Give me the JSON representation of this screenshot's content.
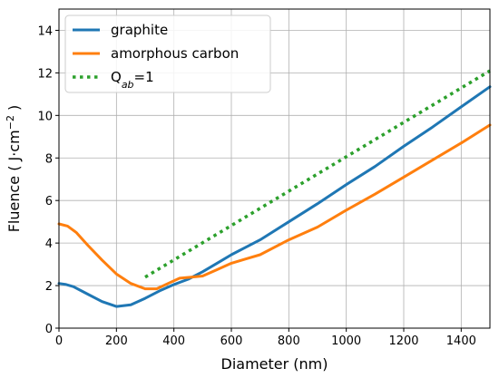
{
  "chart_data": {
    "type": "line",
    "xlabel": "Diameter (nm)",
    "ylabel_parts": [
      "Fluence ( J·cm",
      "−2",
      " )"
    ],
    "xlim": [
      0,
      1500
    ],
    "ylim": [
      0,
      15
    ],
    "xticks": [
      0,
      200,
      400,
      600,
      800,
      1000,
      1200,
      1400
    ],
    "yticks": [
      0,
      2,
      4,
      6,
      8,
      10,
      12,
      14
    ],
    "grid": true,
    "legend_position": "upper-left",
    "series": [
      {
        "name": "graphite",
        "color": "#1f77b4",
        "style": "solid",
        "x": [
          0,
          25,
          50,
          100,
          150,
          200,
          250,
          300,
          350,
          400,
          450,
          500,
          550,
          600,
          650,
          700,
          800,
          900,
          1000,
          1100,
          1200,
          1300,
          1400,
          1500
        ],
        "y": [
          2.1,
          2.05,
          1.95,
          1.6,
          1.25,
          1.02,
          1.1,
          1.4,
          1.75,
          2.05,
          2.3,
          2.65,
          3.05,
          3.45,
          3.8,
          4.15,
          5.0,
          5.85,
          6.75,
          7.6,
          8.55,
          9.45,
          10.4,
          11.35
        ]
      },
      {
        "name": "amorphous carbon",
        "color": "#ff7f0e",
        "style": "solid",
        "x": [
          0,
          30,
          60,
          100,
          150,
          200,
          250,
          300,
          340,
          380,
          420,
          460,
          500,
          550,
          600,
          650,
          700,
          800,
          900,
          1000,
          1100,
          1200,
          1300,
          1400,
          1500
        ],
        "y": [
          4.9,
          4.8,
          4.5,
          3.9,
          3.2,
          2.55,
          2.1,
          1.85,
          1.85,
          2.1,
          2.35,
          2.4,
          2.45,
          2.75,
          3.05,
          3.25,
          3.45,
          4.15,
          4.75,
          5.55,
          6.3,
          7.1,
          7.9,
          8.7,
          9.55
        ]
      },
      {
        "name": "Q",
        "name_sub": "ab",
        "name_suffix": "=1",
        "color": "#2ca02c",
        "style": "dotted",
        "x": [
          300,
          1500
        ],
        "y": [
          2.4,
          12.1
        ]
      }
    ]
  }
}
